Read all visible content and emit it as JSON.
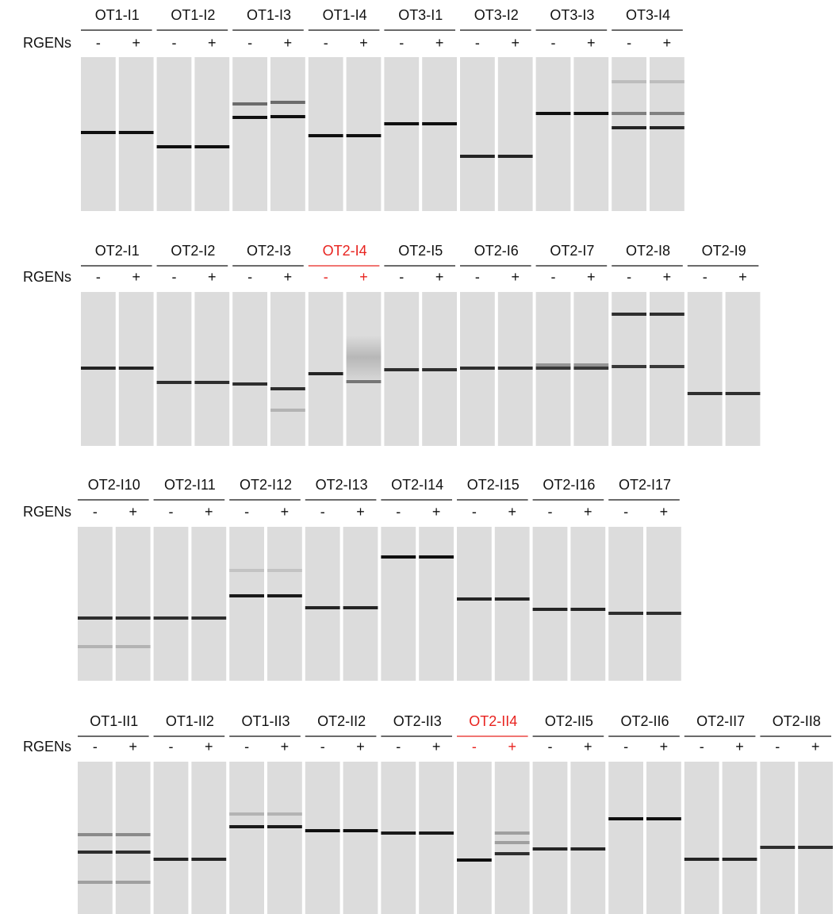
{
  "panels": [
    {
      "label": "RGENs",
      "groups": [
        {
          "name": "OT1-I1",
          "minus": "-",
          "plus": "+"
        },
        {
          "name": "OT1-I2",
          "minus": "-",
          "plus": "+"
        },
        {
          "name": "OT1-I3",
          "minus": "-",
          "plus": "+"
        },
        {
          "name": "OT1-I4",
          "minus": "-",
          "plus": "+"
        },
        {
          "name": "OT3-I1",
          "minus": "-",
          "plus": "+"
        },
        {
          "name": "OT3-I2",
          "minus": "-",
          "plus": "+"
        },
        {
          "name": "OT3-I3",
          "minus": "-",
          "plus": "+"
        },
        {
          "name": "OT3-I4",
          "minus": "-",
          "plus": "+"
        }
      ]
    },
    {
      "label": "RGENs",
      "groups": [
        {
          "name": "OT2-I1",
          "minus": "-",
          "plus": "+"
        },
        {
          "name": "OT2-I2",
          "minus": "-",
          "plus": "+"
        },
        {
          "name": "OT2-I3",
          "minus": "-",
          "plus": "+"
        },
        {
          "name": "OT2-I4",
          "minus": "-",
          "plus": "+",
          "color": "#e8231f"
        },
        {
          "name": "OT2-I5",
          "minus": "-",
          "plus": "+"
        },
        {
          "name": "OT2-I6",
          "minus": "-",
          "plus": "+"
        },
        {
          "name": "OT2-I7",
          "minus": "-",
          "plus": "+"
        },
        {
          "name": "OT2-I8",
          "minus": "-",
          "plus": "+"
        },
        {
          "name": "OT2-I9",
          "minus": "-",
          "plus": "+"
        }
      ]
    },
    {
      "label": "RGENs",
      "groups": [
        {
          "name": "OT2-I10",
          "minus": "-",
          "plus": "+"
        },
        {
          "name": "OT2-I11",
          "minus": "-",
          "plus": "+"
        },
        {
          "name": "OT2-I12",
          "minus": "-",
          "plus": "+"
        },
        {
          "name": "OT2-I13",
          "minus": "-",
          "plus": "+"
        },
        {
          "name": "OT2-I14",
          "minus": "-",
          "plus": "+"
        },
        {
          "name": "OT2-I15",
          "minus": "-",
          "plus": "+"
        },
        {
          "name": "OT2-I16",
          "minus": "-",
          "plus": "+"
        },
        {
          "name": "OT2-I17",
          "minus": "-",
          "plus": "+"
        }
      ]
    },
    {
      "label": "RGENs",
      "groups": [
        {
          "name": "OT1-II1",
          "minus": "-",
          "plus": "+"
        },
        {
          "name": "OT1-II2",
          "minus": "-",
          "plus": "+"
        },
        {
          "name": "OT1-II3",
          "minus": "-",
          "plus": "+"
        },
        {
          "name": "OT2-II2",
          "minus": "-",
          "plus": "+"
        },
        {
          "name": "OT2-II3",
          "minus": "-",
          "plus": "+"
        },
        {
          "name": "OT2-II4",
          "minus": "-",
          "plus": "+",
          "color": "#e8231f"
        },
        {
          "name": "OT2-II5",
          "minus": "-",
          "plus": "+"
        },
        {
          "name": "OT2-II6",
          "minus": "-",
          "plus": "+"
        },
        {
          "name": "OT2-II7",
          "minus": "-",
          "plus": "+"
        },
        {
          "name": "OT2-II8",
          "minus": "-",
          "plus": "+"
        }
      ]
    }
  ]
}
